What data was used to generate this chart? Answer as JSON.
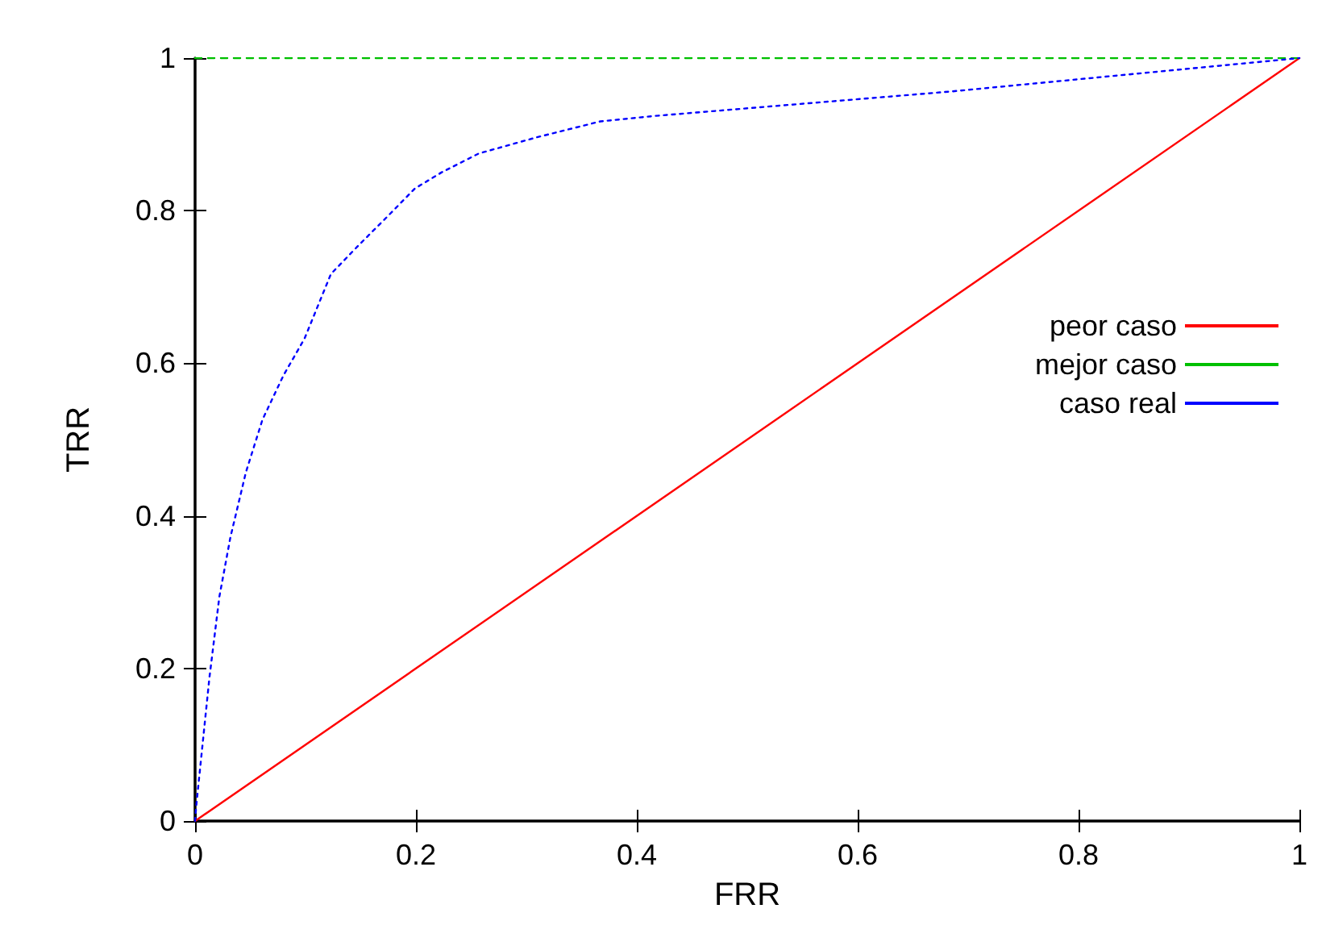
{
  "chart_data": {
    "type": "line",
    "xlabel": "FRR",
    "ylabel": "TRR",
    "xlim": [
      0,
      1
    ],
    "ylim": [
      0,
      1
    ],
    "xticks": [
      0,
      0.2,
      0.4,
      0.6,
      0.8,
      1
    ],
    "yticks": [
      0,
      0.2,
      0.4,
      0.6,
      0.8,
      1
    ],
    "grid": false,
    "legend": "right",
    "marker": "none",
    "series": [
      {
        "name": "peor caso",
        "color": "#ff0000",
        "line_style": "solid",
        "x": [
          0,
          1
        ],
        "values": [
          0,
          1
        ]
      },
      {
        "name": "mejor caso",
        "color": "#00c000",
        "line_style": "dashed",
        "x": [
          0,
          1
        ],
        "values": [
          1,
          1
        ]
      },
      {
        "name": "caso real",
        "color": "#0000ff",
        "line_style": "dotted",
        "x": [
          0,
          0.001,
          0.013,
          0.022,
          0.032,
          0.046,
          0.061,
          0.08,
          0.099,
          0.123,
          0.147,
          0.176,
          0.199,
          0.223,
          0.257,
          0.309,
          0.367,
          0.415,
          0.683,
          1
        ],
        "values": [
          0,
          0.019,
          0.188,
          0.294,
          0.372,
          0.457,
          0.526,
          0.584,
          0.632,
          0.717,
          0.753,
          0.795,
          0.829,
          0.85,
          0.875,
          0.896,
          0.917,
          0.924,
          0.956,
          1
        ]
      }
    ]
  }
}
